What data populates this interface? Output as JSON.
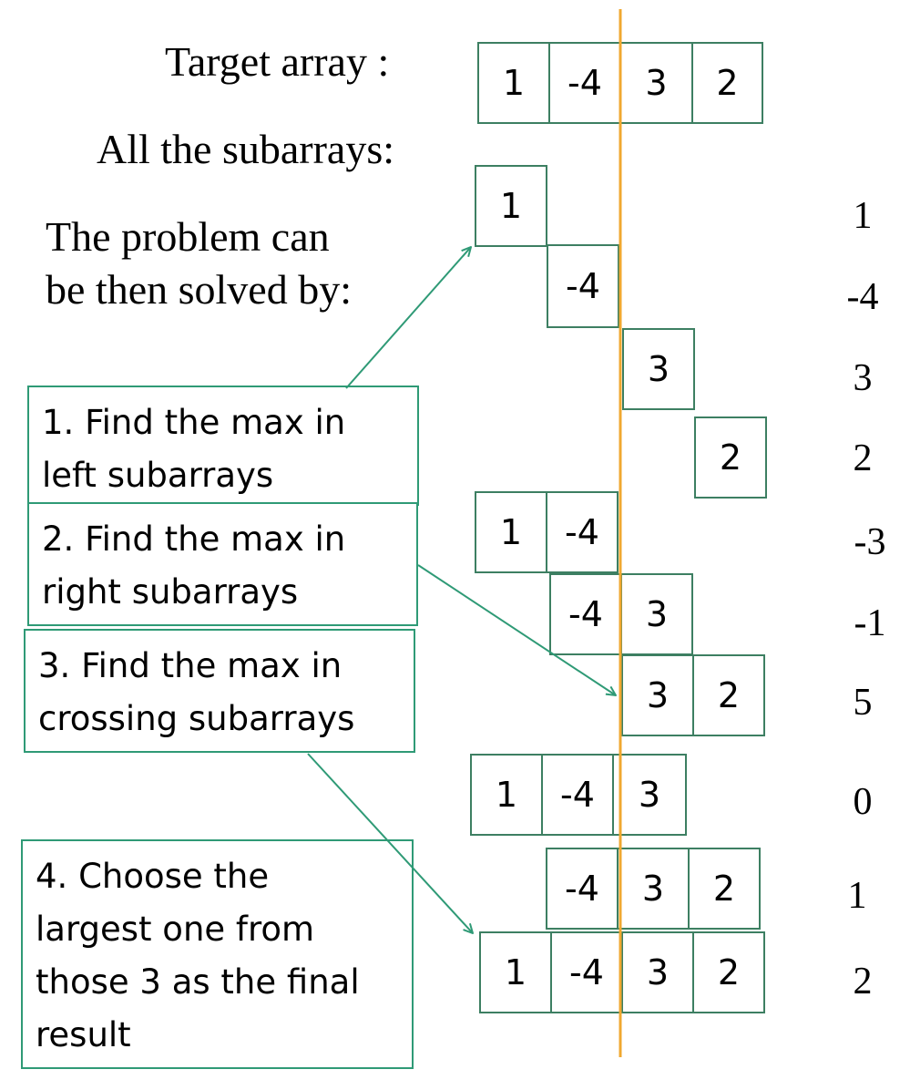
{
  "labels": {
    "target": "Target array :",
    "subarrays": "All the subarrays:",
    "problem_line1": "The problem can",
    "problem_line2": "be then solved by:"
  },
  "target_array": [
    "1",
    "-4",
    "3",
    "2"
  ],
  "subarrays": [
    {
      "cells": [
        "1"
      ],
      "sum": "1"
    },
    {
      "cells": [
        "-4"
      ],
      "sum": "-4"
    },
    {
      "cells": [
        "3"
      ],
      "sum": "3"
    },
    {
      "cells": [
        "2"
      ],
      "sum": "2"
    },
    {
      "cells": [
        "1",
        "-4"
      ],
      "sum": "-3"
    },
    {
      "cells": [
        "-4",
        "3"
      ],
      "sum": "-1"
    },
    {
      "cells": [
        "3",
        "2"
      ],
      "sum": "5"
    },
    {
      "cells": [
        "1",
        "-4",
        "3"
      ],
      "sum": "0"
    },
    {
      "cells": [
        "-4",
        "3",
        "2"
      ],
      "sum": "1"
    },
    {
      "cells": [
        "1",
        "-4",
        "3",
        "2"
      ],
      "sum": "2"
    }
  ],
  "steps": [
    {
      "text": "1. Find the max in\nleft subarrays"
    },
    {
      "text": "2. Find the max in\nright subarrays"
    },
    {
      "text": "3. Find the max in\ncrossing subarrays"
    },
    {
      "text": "4. Choose the\nlargest one from\nthose 3 as the final\nresult"
    }
  ],
  "colors": {
    "divider": "#f0a830",
    "box_border": "#3d7f62",
    "arrow": "#2f9a76"
  }
}
